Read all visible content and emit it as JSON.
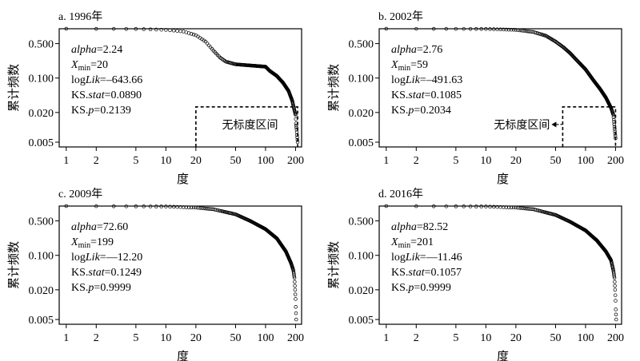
{
  "figure": {
    "ylabel": "累计频数",
    "xlabel": "度",
    "stat_labels": [
      "alpha",
      "X",
      "min",
      "logLik",
      "KS.stat",
      "KS.p"
    ]
  },
  "chart_data": [
    {
      "type": "scatter",
      "title": "a. 1996年",
      "xlabel": "度",
      "ylabel": "累计频数",
      "xscale": "log",
      "yscale": "log",
      "xlim": [
        0.85,
        230
      ],
      "ylim": [
        0.004,
        1.0
      ],
      "xticks": [
        "1",
        "2",
        "5",
        "10",
        "20",
        "50",
        "100",
        "200"
      ],
      "yticks": [
        "0.500",
        "0.100",
        "0.020",
        "0.005"
      ],
      "stats": {
        "alpha": "2.24",
        "xmin": "20",
        "loglik": "–643.66",
        "ks_stat": "0.0890",
        "ks_p": "0.2139"
      },
      "scale_free_label": "无标度区间",
      "scale_free_range": [
        20,
        210
      ],
      "scale_free_top": 0.026,
      "curve": [
        [
          1,
          1.0
        ],
        [
          5,
          0.99
        ],
        [
          10,
          0.95
        ],
        [
          15,
          0.88
        ],
        [
          20,
          0.74
        ],
        [
          25,
          0.55
        ],
        [
          30,
          0.36
        ],
        [
          35,
          0.26
        ],
        [
          40,
          0.215
        ],
        [
          50,
          0.19
        ],
        [
          70,
          0.18
        ],
        [
          100,
          0.17
        ],
        [
          110,
          0.14
        ],
        [
          130,
          0.11
        ],
        [
          150,
          0.08
        ],
        [
          170,
          0.055
        ],
        [
          185,
          0.035
        ],
        [
          195,
          0.022
        ],
        [
          200,
          0.018
        ],
        [
          202,
          0.012
        ],
        [
          205,
          0.009
        ],
        [
          207,
          0.007
        ],
        [
          210,
          0.005
        ]
      ],
      "marker_color": "#000000"
    },
    {
      "type": "scatter",
      "title": "b. 2002年",
      "xlabel": "度",
      "ylabel": "累计频数",
      "xscale": "log",
      "yscale": "log",
      "xlim": [
        0.85,
        230
      ],
      "ylim": [
        0.004,
        1.0
      ],
      "xticks": [
        "1",
        "2",
        "5",
        "10",
        "20",
        "50",
        "100",
        "200"
      ],
      "yticks": [
        "0.500",
        "0.100",
        "0.020",
        "0.005"
      ],
      "stats": {
        "alpha": "2.76",
        "xmin": "59",
        "loglik": "–491.63",
        "ks_stat": "0.1085",
        "ks_p": "0.2034"
      },
      "scale_free_label": "无标度区间",
      "scale_free_range": [
        59,
        200
      ],
      "scale_free_top": 0.026,
      "curve": [
        [
          1,
          1.0
        ],
        [
          10,
          0.99
        ],
        [
          20,
          0.95
        ],
        [
          30,
          0.86
        ],
        [
          40,
          0.72
        ],
        [
          50,
          0.55
        ],
        [
          60,
          0.42
        ],
        [
          70,
          0.32
        ],
        [
          80,
          0.24
        ],
        [
          100,
          0.15
        ],
        [
          120,
          0.09
        ],
        [
          140,
          0.06
        ],
        [
          160,
          0.04
        ],
        [
          180,
          0.025
        ],
        [
          190,
          0.018
        ],
        [
          200,
          0.006
        ]
      ],
      "marker_color": "#000000"
    },
    {
      "type": "scatter",
      "title": "c. 2009年",
      "xlabel": "度",
      "ylabel": "累计频数",
      "xscale": "log",
      "yscale": "log",
      "xlim": [
        0.85,
        230
      ],
      "ylim": [
        0.004,
        1.0
      ],
      "xticks": [
        "1",
        "2",
        "5",
        "10",
        "20",
        "50",
        "100",
        "200"
      ],
      "yticks": [
        "0.500",
        "0.100",
        "0.020",
        "0.005"
      ],
      "stats": {
        "alpha": "72.60",
        "xmin": "199",
        "loglik": "—12.20",
        "ks_stat": "0.1249",
        "ks_p": "0.9999"
      },
      "curve": [
        [
          1,
          1.0
        ],
        [
          10,
          0.98
        ],
        [
          20,
          0.93
        ],
        [
          30,
          0.86
        ],
        [
          50,
          0.68
        ],
        [
          70,
          0.5
        ],
        [
          100,
          0.34
        ],
        [
          130,
          0.22
        ],
        [
          160,
          0.12
        ],
        [
          180,
          0.07
        ],
        [
          190,
          0.05
        ],
        [
          195,
          0.035
        ],
        [
          198,
          0.02
        ],
        [
          200,
          0.013
        ],
        [
          201,
          0.009
        ],
        [
          203,
          0.005
        ]
      ],
      "marker_color": "#000000"
    },
    {
      "type": "scatter",
      "title": "d. 2016年",
      "xlabel": "度",
      "ylabel": "累计频数",
      "xscale": "log",
      "yscale": "log",
      "xlim": [
        0.85,
        230
      ],
      "ylim": [
        0.004,
        1.0
      ],
      "xticks": [
        "1",
        "2",
        "5",
        "10",
        "20",
        "50",
        "100",
        "200"
      ],
      "yticks": [
        "0.500",
        "0.100",
        "0.020",
        "0.005"
      ],
      "stats": {
        "alpha": "82.52",
        "xmin": "201",
        "loglik": "—11.46",
        "ks_stat": "0.1057",
        "ks_p": "0.9999"
      },
      "curve": [
        [
          1,
          1.0
        ],
        [
          10,
          0.98
        ],
        [
          20,
          0.93
        ],
        [
          30,
          0.86
        ],
        [
          50,
          0.66
        ],
        [
          70,
          0.48
        ],
        [
          100,
          0.32
        ],
        [
          130,
          0.2
        ],
        [
          160,
          0.12
        ],
        [
          180,
          0.08
        ],
        [
          190,
          0.05
        ],
        [
          195,
          0.035
        ],
        [
          198,
          0.02
        ],
        [
          200,
          0.012
        ],
        [
          201,
          0.008
        ],
        [
          203,
          0.005
        ]
      ],
      "marker_color": "#000000"
    }
  ]
}
